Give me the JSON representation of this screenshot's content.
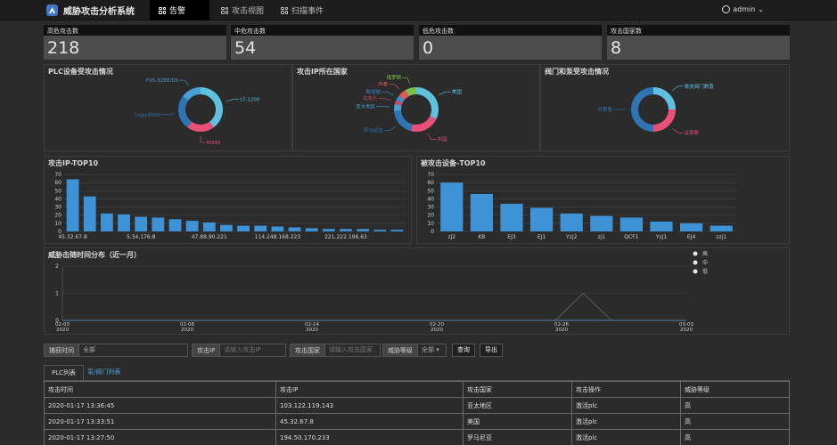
{
  "app": {
    "title": "威胁攻击分析系统"
  },
  "nav": [
    {
      "label": "告警"
    },
    {
      "label": "攻击视图"
    },
    {
      "label": "扫描事件"
    }
  ],
  "user": {
    "name": "admin"
  },
  "stats": [
    {
      "label": "高危攻击数",
      "value": "218"
    },
    {
      "label": "中危攻击数",
      "value": "54"
    },
    {
      "label": "低危攻击数",
      "value": "0"
    },
    {
      "label": "攻击国家数",
      "value": "8"
    }
  ],
  "donuts": [
    {
      "title": "PLC设备受攻击情况",
      "slices": [
        {
          "label": "s7-1200",
          "value": 40,
          "color": "#5fc0e0"
        },
        {
          "label": "M340",
          "value": 20,
          "color": "#e8507a"
        },
        {
          "label": "Logix5000",
          "value": 25,
          "color": "#2f74b5"
        },
        {
          "label": "FX5-32ER/DS",
          "value": 15,
          "color": "#4a9fd4"
        }
      ]
    },
    {
      "title": "攻击IP所在国家",
      "slices": [
        {
          "label": "美国",
          "value": 32,
          "color": "#5fc0e0"
        },
        {
          "label": "中国",
          "value": 22,
          "color": "#e8507a"
        },
        {
          "label": "罗马尼亚",
          "value": 20,
          "color": "#2f74b5"
        },
        {
          "label": "亚太地区",
          "value": 5,
          "color": "#4a9fd4"
        },
        {
          "label": "乌克兰",
          "value": 3,
          "color": "#c94b6c"
        },
        {
          "label": "新加坡",
          "value": 4,
          "color": "#3d8fc9"
        },
        {
          "label": "丹麦",
          "value": 6,
          "color": "#e05a5a"
        },
        {
          "label": "俄罗斯",
          "value": 8,
          "color": "#7dbf4a"
        }
      ]
    },
    {
      "title": "阀门和泵受攻击情况",
      "slices": [
        {
          "label": "泰皮阀门数值",
          "value": 25,
          "color": "#5fc0e0"
        },
        {
          "label": "关泵泵",
          "value": 25,
          "color": "#e8507a"
        },
        {
          "label": "开泵泵",
          "value": 50,
          "color": "#2f74b5"
        }
      ]
    }
  ],
  "top_ip": {
    "title": "攻击IP-TOP10",
    "chart_data": {
      "type": "bar",
      "categories": [
        "45.32.67.8",
        "",
        "",
        "",
        "5.34.176.8",
        "",
        "",
        "",
        "47.88.90.221",
        "",
        "",
        "",
        "114.248.168.223",
        "",
        "",
        "",
        "221.222.196.63",
        "",
        "",
        ""
      ],
      "values": [
        64,
        43,
        22,
        21,
        18,
        17,
        15,
        13,
        11,
        8,
        7,
        7,
        6,
        5,
        4,
        3,
        3,
        3,
        2,
        2
      ],
      "ylim": [
        0,
        70
      ],
      "yticks": [
        0,
        10,
        20,
        30,
        40,
        50,
        60,
        70
      ],
      "color": "#3d93d6"
    }
  },
  "top_device": {
    "title": "被攻击设备-TOP10",
    "chart_data": {
      "type": "bar",
      "categories": [
        "zj2",
        "KB",
        "EJ3",
        "EJ1",
        "Yzj2",
        "zj1",
        "QCF1",
        "Yzj1",
        "EJ4",
        "zzj1"
      ],
      "values": [
        60,
        46,
        34,
        29,
        22,
        19,
        17,
        12,
        10,
        7
      ],
      "ylim": [
        0,
        70
      ],
      "yticks": [
        0,
        10,
        20,
        30,
        40,
        50,
        60,
        70
      ],
      "color": "#3d93d6"
    }
  },
  "timeline": {
    "title": "威胁击随时间分布（近一月）",
    "chart_data": {
      "type": "line",
      "x": [
        "02-03\n2020",
        "02-08\n2020",
        "02-14\n2020",
        "02-20\n2020",
        "02-26\n2020",
        "03-03\n2020"
      ],
      "ylim": [
        0,
        2
      ],
      "yticks": [
        0,
        1,
        2
      ],
      "series": [
        {
          "name": "高",
          "color": "#e8e8e8",
          "points": [
            [
              0,
              0
            ],
            [
              0.79,
              0
            ],
            [
              0.835,
              1
            ],
            [
              0.88,
              0
            ],
            [
              1,
              0
            ]
          ]
        },
        {
          "name": "中",
          "color": "#e8e8e8",
          "points": [
            [
              0,
              0
            ],
            [
              1,
              0
            ]
          ]
        },
        {
          "name": "低",
          "color": "#e8e8e8",
          "points": [
            [
              0,
              0
            ],
            [
              1,
              0
            ]
          ]
        }
      ]
    }
  },
  "filters": {
    "time_label": "捕获时间",
    "time_value": "全部",
    "ip_label": "攻击IP",
    "ip_placeholder": "请输入攻击IP",
    "country_label": "攻击国家",
    "country_placeholder": "请输入攻击国家",
    "level_label": "威胁等级",
    "level_value": "全部",
    "query": "查询",
    "export": "导出"
  },
  "tabs": [
    {
      "label": "PLC列表"
    },
    {
      "label": "泵/阀门列表"
    }
  ],
  "table": {
    "headers": [
      "攻击时间",
      "攻击IP",
      "攻击国家",
      "攻击操作",
      "威胁等级"
    ],
    "rows": [
      [
        "2020-01-17 13:36:45",
        "103.122.119.143",
        "亚太地区",
        "激活plc",
        "高"
      ],
      [
        "2020-01-17 13:33:51",
        "45.32.67.8",
        "美国",
        "激活plc",
        "高"
      ],
      [
        "2020-01-17 13:27:50",
        "194.50.170.233",
        "罗马尼亚",
        "激活plc",
        "高"
      ]
    ]
  }
}
